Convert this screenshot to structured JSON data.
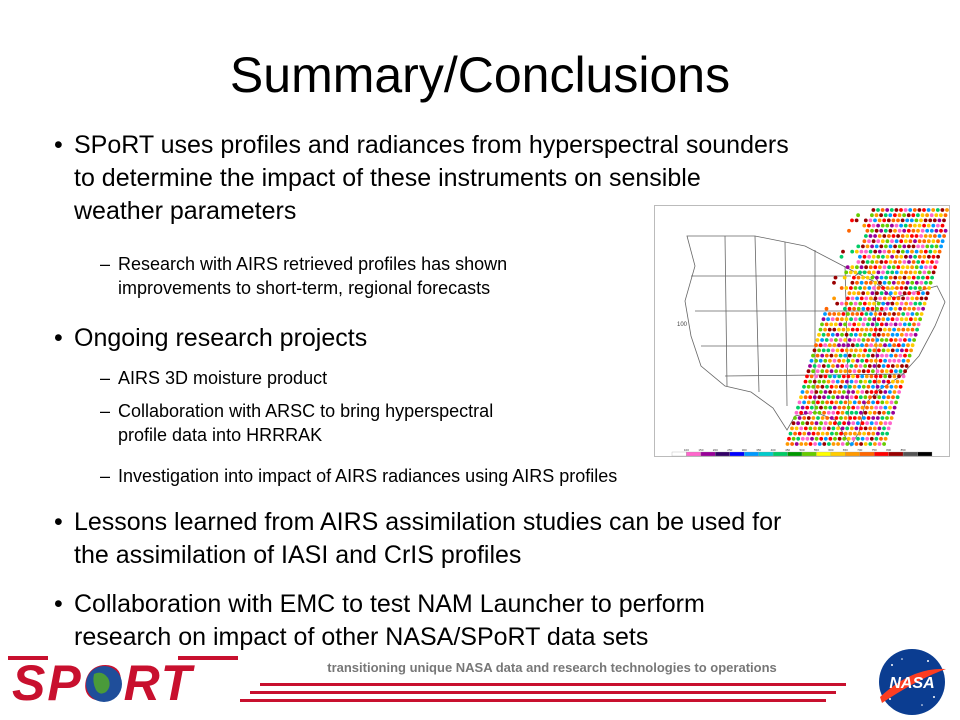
{
  "slide": {
    "title": "Summary/Conclusions",
    "bullet_glyph": "•",
    "dash_glyph": "–",
    "bullets": [
      {
        "lines": [
          "SPoRT uses profiles and radiances from hyperspectral sounders",
          "to determine the impact of these instruments on sensible",
          "weather parameters"
        ],
        "subs": [
          {
            "lines": [
              "Research with AIRS retrieved profiles has shown",
              "improvements to short-term, regional forecasts"
            ]
          }
        ]
      },
      {
        "lines": [
          "Ongoing research projects"
        ],
        "subs": [
          {
            "lines": [
              "AIRS 3D moisture product"
            ]
          },
          {
            "lines": [
              "Collaboration with ARSC to bring hyperspectral",
              "profile data into HRRRAK"
            ]
          },
          {
            "lines": [
              "Investigation into impact of AIRS radiances using AIRS profiles"
            ]
          }
        ]
      },
      {
        "lines": [
          "Lessons learned from AIRS assimilation studies can be used for",
          "the assimilation of IASI and CrIS profiles"
        ],
        "subs": []
      },
      {
        "lines": [
          "Collaboration with EMC to test NAM Launcher to perform",
          "research on impact of other NASA/SPoRT data sets"
        ],
        "subs": []
      }
    ]
  },
  "footer": {
    "tagline": "transitioning unique NASA data and research technologies to operations",
    "sport_logo_text": "SPORT",
    "nasa_logo_text": "NASA"
  },
  "figure": {
    "map_label": "100",
    "colorbar_ticks": [
      "100",
      "150",
      "200",
      "250",
      "300",
      "350",
      "400",
      "450",
      "500",
      "550",
      "600",
      "650",
      "700",
      "750",
      "800",
      "850"
    ],
    "colorbar_colors": [
      "#ffffff",
      "#ff66cc",
      "#990099",
      "#330066",
      "#0000ff",
      "#0099ff",
      "#00cccc",
      "#00cc66",
      "#009900",
      "#66cc00",
      "#ffff00",
      "#ffcc00",
      "#ff9900",
      "#ff6600",
      "#ff0000",
      "#990000",
      "#555555",
      "#000000"
    ]
  },
  "colors": {
    "accent_red": "#c8102e",
    "nasa_blue": "#0b3d91"
  }
}
